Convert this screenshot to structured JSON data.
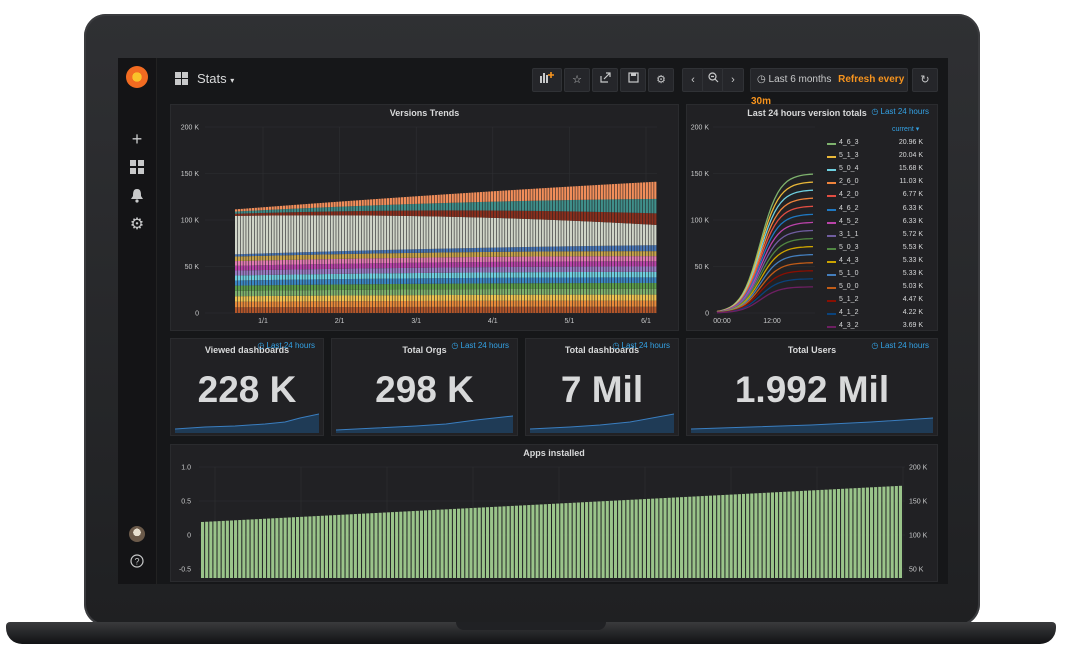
{
  "topbar": {
    "dashboard_title": "Stats",
    "time_range": "Last 6 months",
    "refresh": "Refresh every 30m"
  },
  "panels": {
    "versions_trends": {
      "title": "Versions Trends",
      "y_ticks": [
        "200 K",
        "150 K",
        "100 K",
        "50 K",
        "0"
      ],
      "x_ticks": [
        "1/1",
        "2/1",
        "3/1",
        "4/1",
        "5/1",
        "6/1"
      ]
    },
    "version_totals": {
      "title": "Last 24 hours version totals",
      "time_badge": "Last 24 hours",
      "legend_header": "current",
      "y_ticks": [
        "200 K",
        "150 K",
        "100 K",
        "50 K",
        "0"
      ],
      "x_ticks": [
        "00:00",
        "12:00"
      ],
      "legend": [
        {
          "name": "4_6_3",
          "value": "20.96 K",
          "color": "#7eb26d"
        },
        {
          "name": "5_1_3",
          "value": "20.04 K",
          "color": "#eab839"
        },
        {
          "name": "5_0_4",
          "value": "15.68 K",
          "color": "#6ed0e0"
        },
        {
          "name": "2_6_0",
          "value": "11.03 K",
          "color": "#ef843c"
        },
        {
          "name": "4_2_0",
          "value": "6.77 K",
          "color": "#e24d42"
        },
        {
          "name": "4_6_2",
          "value": "6.33 K",
          "color": "#1f78c1"
        },
        {
          "name": "4_5_2",
          "value": "6.33 K",
          "color": "#ba43a9"
        },
        {
          "name": "3_1_1",
          "value": "5.72 K",
          "color": "#705da0"
        },
        {
          "name": "5_0_3",
          "value": "5.53 K",
          "color": "#508642"
        },
        {
          "name": "4_4_3",
          "value": "5.33 K",
          "color": "#cca300"
        },
        {
          "name": "5_1_0",
          "value": "5.33 K",
          "color": "#447ebc"
        },
        {
          "name": "5_0_0",
          "value": "5.03 K",
          "color": "#c15c17"
        },
        {
          "name": "5_1_2",
          "value": "4.47 K",
          "color": "#890f02"
        },
        {
          "name": "4_1_2",
          "value": "4.22 K",
          "color": "#0a437c"
        },
        {
          "name": "4_3_2",
          "value": "3.69 K",
          "color": "#6d1f62"
        }
      ]
    },
    "stats": [
      {
        "title": "Viewed dashboards",
        "value": "228 K",
        "badge": "Last 24 hours"
      },
      {
        "title": "Total Orgs",
        "value": "298 K",
        "badge": "Last 24 hours"
      },
      {
        "title": "Total dashboards",
        "value": "7 Mil",
        "badge": "Last 24 hours"
      },
      {
        "title": "Total Users",
        "value": "1.992 Mil",
        "badge": "Last 24 hours"
      }
    ],
    "apps_installed": {
      "title": "Apps installed",
      "y_left_ticks": [
        "1.0",
        "0.5",
        "0",
        "-0.5"
      ],
      "y_right_ticks": [
        "200 K",
        "150 K",
        "100 K",
        "50 K"
      ],
      "bar_color": "#9ac48a"
    }
  },
  "colors": {
    "accent": "#33a2e5",
    "refresh": "#f7941e",
    "background": "#161719",
    "panel": "#212124"
  },
  "icons": [
    "grafana-logo-icon",
    "plus-icon",
    "dashboards-icon",
    "bell-icon",
    "gear-icon",
    "help-icon"
  ]
}
